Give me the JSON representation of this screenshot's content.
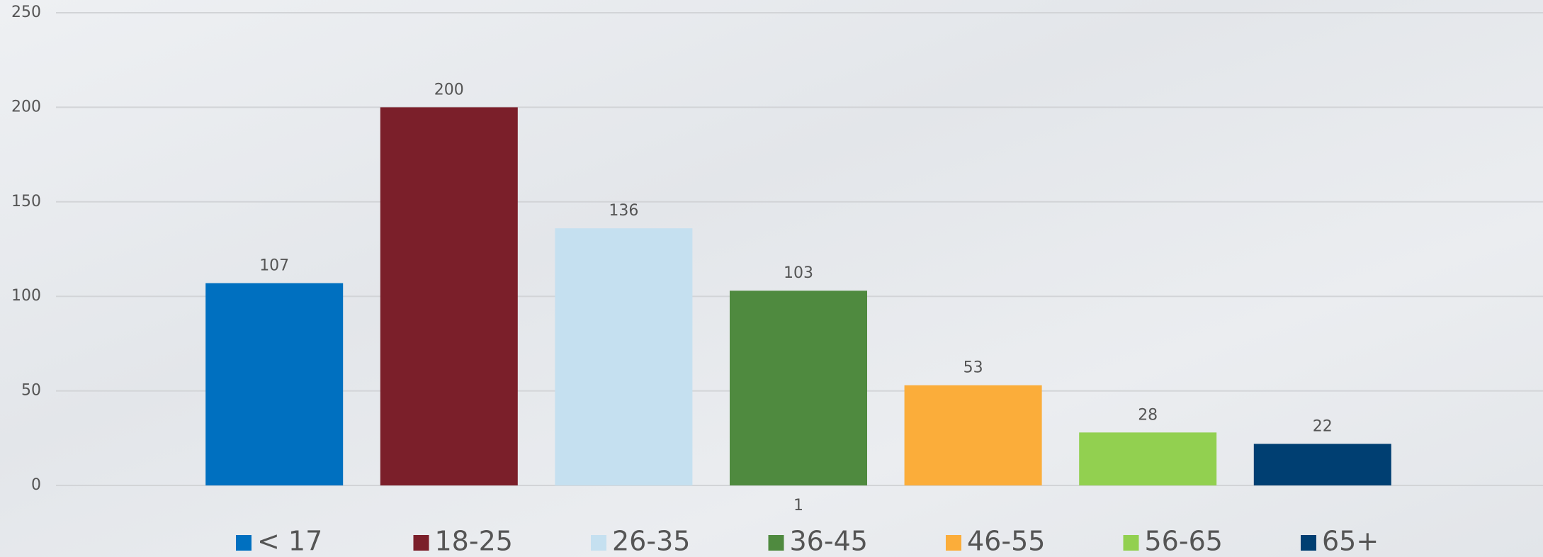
{
  "chart_data": {
    "type": "bar",
    "categories": [
      "1"
    ],
    "series": [
      {
        "name": "< 17",
        "color": "#0070c0",
        "values": [
          107
        ]
      },
      {
        "name": "18-25",
        "color": "#7b1f2a",
        "values": [
          200
        ]
      },
      {
        "name": "26-35",
        "color": "#c5e0f0",
        "values": [
          136
        ]
      },
      {
        "name": "36-45",
        "color": "#4f8a3f",
        "values": [
          103
        ]
      },
      {
        "name": "46-55",
        "color": "#fbad3a",
        "values": [
          53
        ]
      },
      {
        "name": "56-65",
        "color": "#92d050",
        "values": [
          28
        ]
      },
      {
        "name": "65+",
        "color": "#003f72",
        "values": [
          22
        ]
      }
    ],
    "ylim": [
      0,
      250
    ],
    "yticks": [
      0,
      50,
      100,
      150,
      200,
      250
    ],
    "grid": true,
    "legend": "bottom"
  }
}
